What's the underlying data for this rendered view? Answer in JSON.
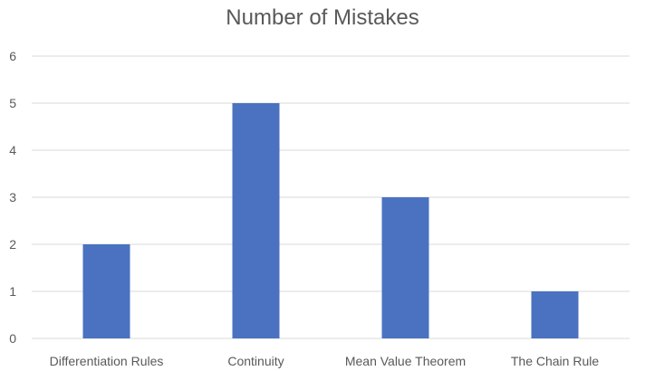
{
  "chart_data": {
    "type": "bar",
    "title": "Number of Mistakes",
    "xlabel": "",
    "ylabel": "",
    "categories": [
      "Differentiation Rules",
      "Continuity",
      "Mean Value Theorem",
      "The Chain Rule"
    ],
    "values": [
      2,
      5,
      3,
      1
    ],
    "ylim": [
      0,
      6
    ],
    "yticks": [
      0,
      1,
      2,
      3,
      4,
      5,
      6
    ],
    "grid": true,
    "legend": "none",
    "bar_color": "#4a72c1",
    "grid_color": "#d9d9d9"
  }
}
